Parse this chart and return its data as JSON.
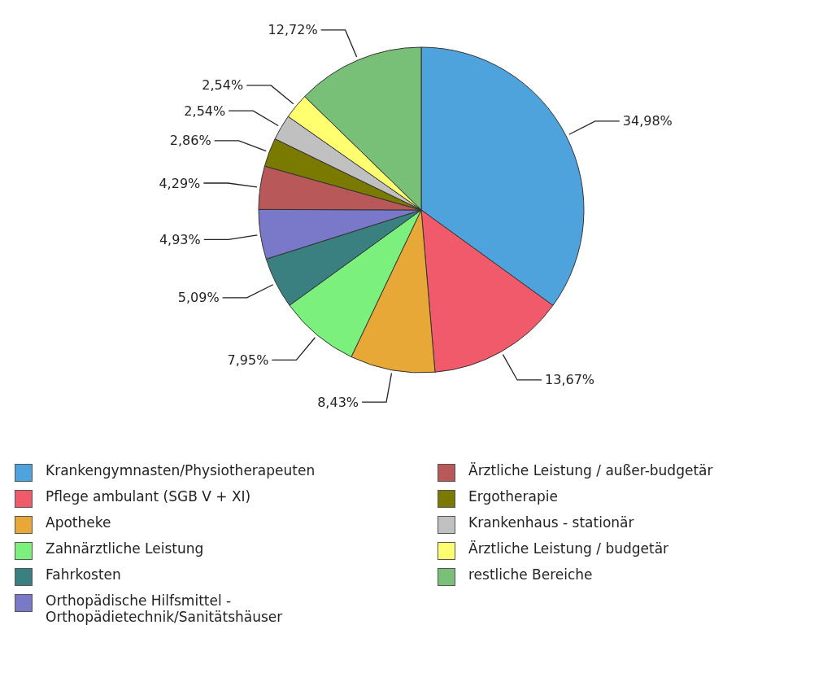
{
  "chart_data": {
    "type": "pie",
    "legend": "bottom",
    "categories": [
      "Krankengymnasten/Physiotherapeuten",
      "Pflege ambulant (SGB V + XI)",
      "Apotheke",
      "Zahnärztliche Leistung",
      "Fahrkosten",
      "Orthopädische Hilfsmittel - Orthopädietechnik/Sanitätshäuser",
      "Ärztliche Leistung / außer-budgetär",
      "Ergotherapie",
      "Krankenhaus - stationär",
      "Ärztliche Leistung / budgetär",
      "restliche Bereiche"
    ],
    "values": [
      34.98,
      13.67,
      8.43,
      7.95,
      5.09,
      4.93,
      4.29,
      2.86,
      2.54,
      2.54,
      12.72
    ],
    "value_labels": [
      "34,98%",
      "13,67%",
      "8,43%",
      "7,95%",
      "5,09%",
      "4,93%",
      "4,29%",
      "2,86%",
      "2,54%",
      "2,54%",
      "12,72%"
    ],
    "colors": [
      "#4fa3dc",
      "#f05a6a",
      "#e8a838",
      "#7cf07c",
      "#3a8080",
      "#7a78c8",
      "#b85858",
      "#7a7a00",
      "#c0c0c0",
      "#ffff70",
      "#78c078"
    ]
  }
}
